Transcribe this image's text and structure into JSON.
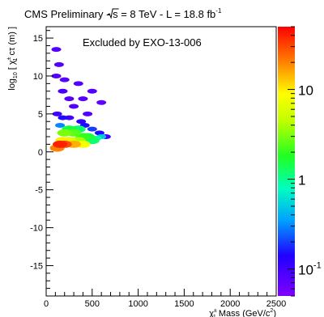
{
  "chart_data": {
    "type": "heatmap",
    "title": {
      "prefix": "CMS Preliminary  -  ",
      "sqrt_s": "s = 8 TeV",
      "sep": "  -  ",
      "lumi_main": "L = 18.8 fb",
      "lumi_sup": "-1"
    },
    "annotation": "Excluded by EXO-13-006",
    "xlabel": {
      "pre": "χ",
      "sup": "±",
      "sub": "1",
      "post": " Mass (GeV/c",
      "post_sup": "2",
      "end": ")"
    },
    "ylabel": {
      "pre": "log",
      "sub10": "10",
      "mid": " [ χ",
      "sup": "±",
      "sub": "1",
      "post": " cτ (m) ]"
    },
    "xlim": [
      0,
      2500
    ],
    "ylim": [
      -19,
      16.5
    ],
    "x_ticks": [
      0,
      500,
      1000,
      1500,
      2000,
      2500
    ],
    "x_tick_labels": [
      "0",
      "500",
      "1000",
      "1500",
      "2000",
      "2500"
    ],
    "y_ticks": [
      -15,
      -10,
      -5,
      0,
      5,
      10,
      15
    ],
    "y_tick_labels": [
      "-15",
      "-10",
      "-5",
      "0",
      "5",
      "10",
      "15"
    ],
    "colorbar": {
      "scale": "log",
      "range": [
        0.05,
        50
      ],
      "labels": [
        {
          "value": 10,
          "text": "10",
          "sup": ""
        },
        {
          "value": 1,
          "text": "1",
          "sup": ""
        },
        {
          "value": 0.1,
          "text": "10",
          "sup": "-1"
        }
      ]
    },
    "cells_note": "color value z per (x GeV, y log10 ctau) bin",
    "cells": [
      [
        200,
        1.0,
        30
      ],
      [
        300,
        1.0,
        15
      ],
      [
        400,
        1.0,
        8
      ],
      [
        150,
        1.0,
        40
      ],
      [
        180,
        1.5,
        10
      ],
      [
        250,
        1.5,
        6
      ],
      [
        350,
        1.5,
        4
      ],
      [
        120,
        0.5,
        20
      ],
      [
        200,
        2.5,
        3
      ],
      [
        300,
        2.5,
        2.5
      ],
      [
        400,
        2.0,
        2
      ],
      [
        250,
        3.0,
        1.5
      ],
      [
        350,
        3.0,
        1.2
      ],
      [
        450,
        2.0,
        1.5
      ],
      [
        500,
        1.5,
        1.2
      ],
      [
        550,
        1.8,
        1.0
      ],
      [
        600,
        2.0,
        0.5
      ],
      [
        150,
        3.5,
        0.3
      ],
      [
        120,
        5.0,
        0.1
      ],
      [
        180,
        4.5,
        0.15
      ],
      [
        250,
        4.5,
        0.1
      ],
      [
        380,
        4.0,
        0.12
      ],
      [
        420,
        3.5,
        0.15
      ],
      [
        500,
        3.0,
        0.2
      ],
      [
        580,
        2.5,
        0.15
      ],
      [
        650,
        2.0,
        0.1
      ],
      [
        300,
        6.0,
        0.08
      ],
      [
        400,
        7.0,
        0.08
      ],
      [
        180,
        8.0,
        0.09
      ],
      [
        500,
        8.0,
        0.08
      ],
      [
        110,
        10.0,
        0.08
      ],
      [
        140,
        11.5,
        0.08
      ],
      [
        110,
        13.5,
        0.08
      ],
      [
        350,
        9.0,
        0.08
      ],
      [
        250,
        7.0,
        0.08
      ],
      [
        600,
        6.5,
        0.07
      ],
      [
        450,
        5.0,
        0.08
      ],
      [
        200,
        9.5,
        0.08
      ]
    ]
  }
}
